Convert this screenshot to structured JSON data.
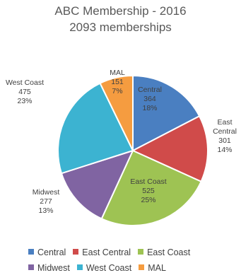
{
  "chart_data": {
    "type": "pie",
    "title": "ABC Membership - 2016",
    "subtitle": "2093 memberships",
    "slices": [
      {
        "name": "Central",
        "value": 364,
        "percent": "18%",
        "color": "#4a7fc1"
      },
      {
        "name": "East Central",
        "value": 301,
        "percent": "14%",
        "color": "#d04b4a"
      },
      {
        "name": "East Coast",
        "value": 525,
        "percent": "25%",
        "color": "#9ec353"
      },
      {
        "name": "Midwest",
        "value": 277,
        "percent": "13%",
        "color": "#8064a2"
      },
      {
        "name": "West Coast",
        "value": 475,
        "percent": "23%",
        "color": "#3cb3d1"
      },
      {
        "name": "MAL",
        "value": 151,
        "percent": "7%",
        "color": "#f59c40"
      }
    ],
    "legend_position": "bottom",
    "data_labels": "category, value, percent"
  }
}
